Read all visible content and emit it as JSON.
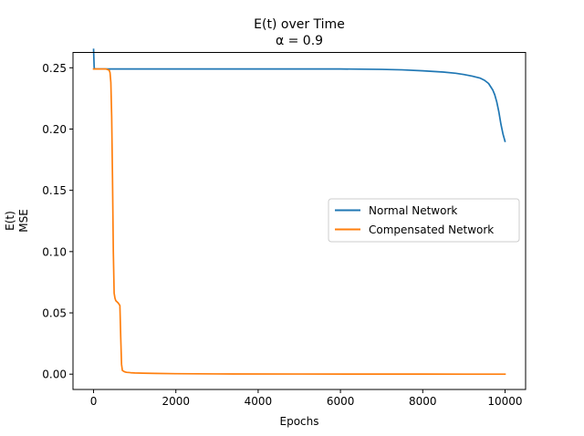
{
  "chart_data": {
    "type": "line",
    "title": "E(t) over Time",
    "subtitle": "α = 0.9",
    "xlabel": "Epochs",
    "ylabel_line1": "E(t)",
    "ylabel_line2": "MSE",
    "xlim": [
      -500,
      10500
    ],
    "ylim": [
      -0.0125,
      0.2625
    ],
    "xticks": [
      0,
      2000,
      4000,
      6000,
      8000,
      10000
    ],
    "xtick_labels": [
      "0",
      "2000",
      "4000",
      "6000",
      "8000",
      "10000"
    ],
    "yticks": [
      0.0,
      0.05,
      0.1,
      0.15,
      0.2,
      0.25
    ],
    "ytick_labels": [
      "0.00",
      "0.05",
      "0.10",
      "0.15",
      "0.20",
      "0.25"
    ],
    "grid": false,
    "legend_position": "center-right",
    "series": [
      {
        "name": "Normal Network",
        "color": "#1f77b4",
        "x": [
          0,
          15,
          30,
          50,
          100,
          500,
          1000,
          2000,
          3000,
          4000,
          5000,
          6000,
          7000,
          7500,
          8000,
          8500,
          8800,
          9000,
          9200,
          9400,
          9500,
          9600,
          9700,
          9750,
          9800,
          9850,
          9900,
          9950,
          10000
        ],
        "y": [
          0.265,
          0.25,
          0.249,
          0.249,
          0.249,
          0.249,
          0.249,
          0.249,
          0.249,
          0.249,
          0.249,
          0.249,
          0.2487,
          0.2483,
          0.2475,
          0.2465,
          0.2455,
          0.2445,
          0.2432,
          0.2415,
          0.2398,
          0.2372,
          0.232,
          0.228,
          0.222,
          0.214,
          0.204,
          0.196,
          0.19
        ]
      },
      {
        "name": "Compensated Network",
        "color": "#ff7f0e",
        "x": [
          0,
          10,
          30,
          100,
          200,
          300,
          380,
          400,
          420,
          440,
          460,
          480,
          500,
          520,
          540,
          600,
          640,
          660,
          680,
          700,
          750,
          800,
          900,
          1000,
          1200,
          1500,
          2000,
          3000,
          5000,
          8000,
          10000
        ],
        "y": [
          0.249,
          0.249,
          0.249,
          0.249,
          0.249,
          0.249,
          0.248,
          0.246,
          0.238,
          0.21,
          0.16,
          0.1,
          0.066,
          0.062,
          0.06,
          0.058,
          0.056,
          0.03,
          0.008,
          0.003,
          0.002,
          0.0015,
          0.0012,
          0.001,
          0.0008,
          0.0006,
          0.0004,
          0.0002,
          0.0001,
          5e-05,
          0.0
        ]
      }
    ]
  }
}
